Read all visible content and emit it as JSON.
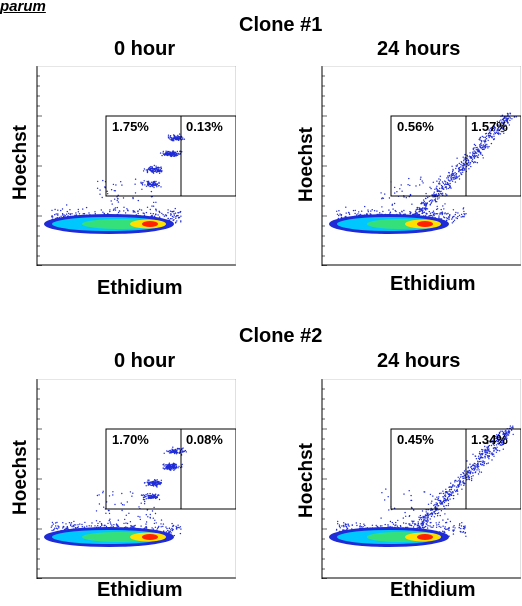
{
  "figure": {
    "species_label": "parum",
    "x_axis_label": "Ethidium",
    "y_axis_label": "Hoechst"
  },
  "clones": [
    {
      "title": "Clone #1",
      "panels": [
        {
          "time": "0 hour",
          "upper_left": "1.75%",
          "upper_right": "0.13%"
        },
        {
          "time": "24 hours",
          "upper_left": "0.56%",
          "upper_right": "1.57%"
        }
      ]
    },
    {
      "title": "Clone #2",
      "panels": [
        {
          "time": "0 hour",
          "upper_left": "1.70%",
          "upper_right": "0.08%"
        },
        {
          "time": "24 hours",
          "upper_left": "0.45%",
          "upper_right": "1.34%"
        }
      ]
    }
  ],
  "chart_data": [
    {
      "type": "scatter",
      "title": "Clone #1 0 hour",
      "xlabel": "Ethidium",
      "ylabel": "Hoechst",
      "gates": [
        {
          "label": "1.75%",
          "quadrant": "upper-left"
        },
        {
          "label": "0.13%",
          "quadrant": "upper-right"
        }
      ],
      "grid": false
    },
    {
      "type": "scatter",
      "title": "Clone #1 24 hours",
      "xlabel": "Ethidium",
      "ylabel": "Hoechst",
      "gates": [
        {
          "label": "0.56%",
          "quadrant": "upper-left"
        },
        {
          "label": "1.57%",
          "quadrant": "upper-right"
        }
      ],
      "grid": false
    },
    {
      "type": "scatter",
      "title": "Clone #2 0 hour",
      "xlabel": "Ethidium",
      "ylabel": "Hoechst",
      "gates": [
        {
          "label": "1.70%",
          "quadrant": "upper-left"
        },
        {
          "label": "0.08%",
          "quadrant": "upper-right"
        }
      ],
      "grid": false
    },
    {
      "type": "scatter",
      "title": "Clone #2 24 hours",
      "xlabel": "Ethidium",
      "ylabel": "Hoechst",
      "gates": [
        {
          "label": "0.45%",
          "quadrant": "upper-left"
        },
        {
          "label": "1.34%",
          "quadrant": "upper-right"
        }
      ],
      "grid": false
    }
  ],
  "colors": {
    "scatter_sparse": "#1f2bd6",
    "density_mid": "#00c8ff",
    "density_high": "#ffe000",
    "density_core": "#ff2000",
    "axis": "#000000"
  }
}
